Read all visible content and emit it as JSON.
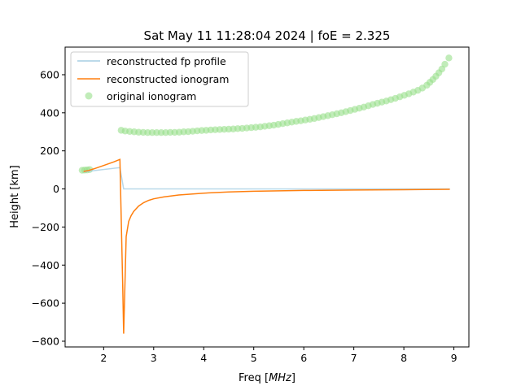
{
  "chart_data": {
    "type": "line",
    "title": "Sat May 11 11:28:04 2024 | foE = 2.325",
    "xlabel_prefix": "Freq [",
    "xlabel_unit": "MHz",
    "xlabel_suffix": "]",
    "ylabel": "Height [km]",
    "xlim": [
      1.23,
      9.3
    ],
    "ylim": [
      -830,
      745
    ],
    "xticks": [
      2,
      3,
      4,
      5,
      6,
      7,
      8,
      9
    ],
    "yticks": [
      -800,
      -600,
      -400,
      -200,
      0,
      200,
      400,
      600
    ],
    "grid": false,
    "legend_placement": "top-left",
    "colors": {
      "fp_profile": "#a6cee3",
      "ionogram": "#ff7f0e",
      "original": "#98df8a"
    },
    "series": [
      {
        "name": "reconstructed fp profile",
        "kind": "line",
        "x": [
          1.6,
          2.325,
          2.4,
          3,
          4,
          5,
          6,
          7,
          8,
          8.92
        ],
        "y": [
          90,
          112,
          0,
          0,
          0,
          0,
          0,
          0,
          0,
          0
        ]
      },
      {
        "name": "reconstructed ionogram",
        "kind": "line",
        "x": [
          1.6,
          1.7,
          1.8,
          2.0,
          2.2,
          2.325,
          2.38,
          2.4,
          2.45,
          2.5,
          2.55,
          2.6,
          2.7,
          2.8,
          2.9,
          3.0,
          3.2,
          3.5,
          4.0,
          4.5,
          5.0,
          6.0,
          7.0,
          8.0,
          8.92
        ],
        "y": [
          92,
          97,
          105,
          123,
          142,
          155,
          -500,
          -760,
          -250,
          -170,
          -140,
          -118,
          -90,
          -72,
          -60,
          -52,
          -42,
          -32,
          -22,
          -16,
          -12,
          -8,
          -6,
          -4,
          -2
        ]
      },
      {
        "name": "original ionogram",
        "kind": "scatter",
        "x": [
          1.57,
          1.62,
          1.67,
          1.72,
          2.35,
          2.43,
          2.52,
          2.61,
          2.7,
          2.79,
          2.88,
          2.97,
          3.06,
          3.15,
          3.24,
          3.33,
          3.42,
          3.51,
          3.6,
          3.69,
          3.78,
          3.87,
          3.96,
          4.05,
          4.14,
          4.23,
          4.32,
          4.41,
          4.5,
          4.59,
          4.68,
          4.77,
          4.86,
          4.95,
          5.04,
          5.13,
          5.22,
          5.31,
          5.4,
          5.49,
          5.58,
          5.67,
          5.76,
          5.85,
          5.94,
          6.03,
          6.12,
          6.21,
          6.3,
          6.39,
          6.48,
          6.57,
          6.66,
          6.75,
          6.84,
          6.93,
          7.02,
          7.11,
          7.2,
          7.29,
          7.38,
          7.47,
          7.56,
          7.65,
          7.74,
          7.83,
          7.92,
          8.01,
          8.1,
          8.19,
          8.28,
          8.37,
          8.46,
          8.52,
          8.58,
          8.64,
          8.7,
          8.76,
          8.82,
          8.9
        ],
        "y": [
          98,
          99,
          100,
          102,
          308,
          304,
          302,
          300,
          298,
          297,
          296,
          296,
          296,
          296,
          296,
          297,
          297,
          298,
          300,
          301,
          303,
          305,
          307,
          308,
          310,
          311,
          312,
          313,
          314,
          315,
          317,
          318,
          320,
          322,
          324,
          326,
          329,
          332,
          335,
          339,
          343,
          347,
          351,
          355,
          358,
          362,
          366,
          370,
          375,
          380,
          385,
          390,
          395,
          400,
          406,
          412,
          418,
          424,
          430,
          437,
          444,
          450,
          456,
          462,
          469,
          476,
          484,
          492,
          500,
          509,
          518,
          530,
          545,
          560,
          575,
          592,
          610,
          630,
          655,
          688
        ]
      }
    ]
  }
}
